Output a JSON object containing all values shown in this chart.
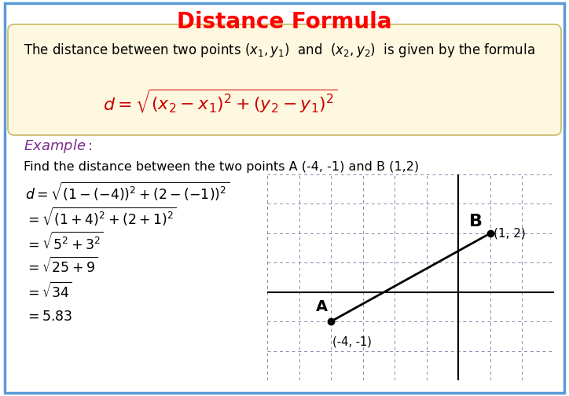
{
  "title": "Distance Formula",
  "title_color": "#FF0000",
  "title_fontsize": 20,
  "bg_color": "#FFFFFF",
  "box_bg_color": "#FFF8E0",
  "box_edge_color": "#C8B866",
  "border_color": "#5B9BD5",
  "formula_color": "#CC0000",
  "example_color": "#7B2D8B",
  "graph_xlim": [
    -6,
    3
  ],
  "graph_ylim": [
    -3,
    4
  ],
  "grid_color": "#8888AA",
  "axis_color": "#000000",
  "point_color": "#000000",
  "line_color": "#000000",
  "point_A": [
    -4,
    -1
  ],
  "point_B": [
    1,
    2
  ]
}
